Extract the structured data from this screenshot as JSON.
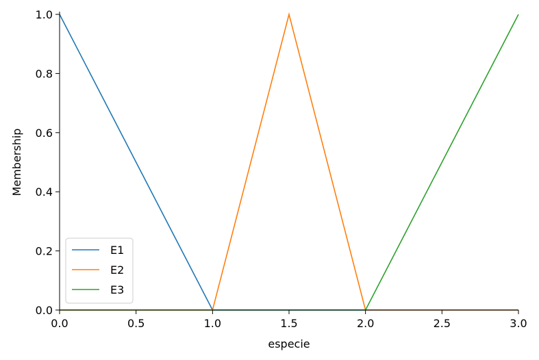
{
  "chart_data": {
    "type": "line",
    "title": "",
    "xlabel": "especie",
    "ylabel": "Membership",
    "xlim": [
      0,
      3
    ],
    "ylim": [
      0,
      1
    ],
    "xticks": [
      0,
      0.5,
      1,
      1.5,
      2,
      2.5,
      3
    ],
    "xtick_labels": [
      "0.0",
      "0.5",
      "1.0",
      "1.5",
      "2.0",
      "2.5",
      "3.0"
    ],
    "yticks": [
      0,
      0.2,
      0.4,
      0.6,
      0.8,
      1
    ],
    "ytick_labels": [
      "0.0",
      "0.2",
      "0.4",
      "0.6",
      "0.8",
      "1.0"
    ],
    "grid": false,
    "legend_position": "lower-left",
    "series": [
      {
        "name": "E1",
        "color": "#1f77b4",
        "x": [
          0,
          1,
          3
        ],
        "y": [
          1,
          0,
          0
        ]
      },
      {
        "name": "E2",
        "color": "#ff7f0e",
        "x": [
          0,
          1,
          1.5,
          2,
          3
        ],
        "y": [
          0,
          0,
          1,
          0,
          0
        ]
      },
      {
        "name": "E3",
        "color": "#2ca02c",
        "x": [
          0,
          2,
          3
        ],
        "y": [
          0,
          0,
          1
        ]
      }
    ]
  }
}
